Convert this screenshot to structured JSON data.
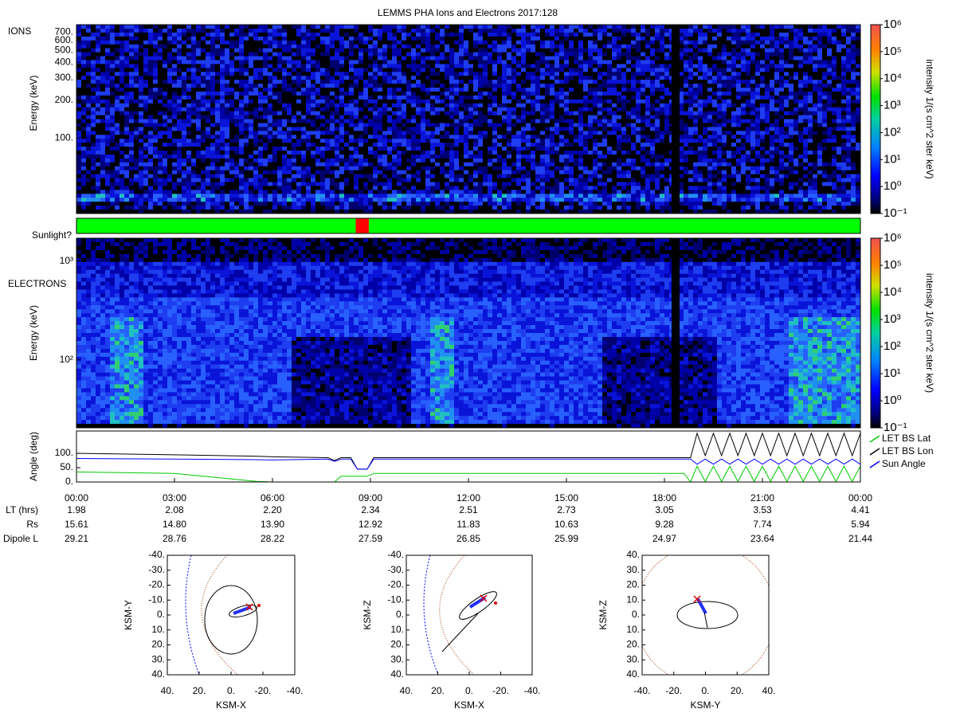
{
  "title": "LEMMS PHA Ions and Electrons  2017:128",
  "chart_data": [
    {
      "type": "heatmap",
      "label": "IONS",
      "y_label": "Energy (keV)",
      "log_y": true,
      "ylim": [
        25,
        800
      ],
      "yticks": [
        {
          "value": 100,
          "label": "100."
        },
        {
          "value": 200,
          "label": "200."
        },
        {
          "value": 300,
          "label": "300."
        },
        {
          "value": 400,
          "label": "400."
        },
        {
          "value": 500,
          "label": "500."
        },
        {
          "value": 600,
          "label": "600."
        },
        {
          "value": 700,
          "label": "700."
        }
      ],
      "colorbar": {
        "label": "intensity 1/(s cm^2 ster keV)",
        "log": true,
        "lim": [
          0.1,
          1000000
        ],
        "ticks": [
          {
            "value": 0.1,
            "label": "10⁻¹"
          },
          {
            "value": 1,
            "label": "10⁰"
          },
          {
            "value": 10,
            "label": "10¹"
          },
          {
            "value": 100,
            "label": "10²"
          },
          {
            "value": 1000,
            "label": "10³"
          },
          {
            "value": 10000,
            "label": "10⁴"
          },
          {
            "value": 100000,
            "label": "10⁵"
          },
          {
            "value": 1000000,
            "label": "10⁶"
          }
        ]
      }
    },
    {
      "type": "timeline",
      "label": "Sunlight?",
      "xlim": [
        0,
        24
      ],
      "segments": [
        {
          "start": 0,
          "end": 8.55,
          "color": "#00ff00"
        },
        {
          "start": 8.55,
          "end": 8.95,
          "color": "#ff0000"
        },
        {
          "start": 8.95,
          "end": 24,
          "color": "#00ff00"
        }
      ]
    },
    {
      "type": "heatmap",
      "label": "ELECTRONS",
      "y_label": "Energy (keV)",
      "log_y": true,
      "ylim": [
        20.6,
        1700
      ],
      "yticks": [
        {
          "value": 100,
          "label": "10²"
        },
        {
          "value": 1000,
          "label": "10³"
        }
      ],
      "colorbar": {
        "label": "intensity 1/(s cm^2 ster keV)",
        "log": true,
        "lim": [
          0.1,
          1000000
        ],
        "ticks": [
          {
            "value": 0.1,
            "label": "10⁻¹"
          },
          {
            "value": 1,
            "label": "10⁰"
          },
          {
            "value": 10,
            "label": "10¹"
          },
          {
            "value": 100,
            "label": "10²"
          },
          {
            "value": 1000,
            "label": "10³"
          },
          {
            "value": 10000,
            "label": "10⁴"
          },
          {
            "value": 100000,
            "label": "10⁵"
          },
          {
            "value": 1000000,
            "label": "10⁶"
          }
        ]
      }
    },
    {
      "type": "line",
      "y_label": "Angle (deg)",
      "xlim": [
        0,
        24
      ],
      "ylim": [
        0,
        178
      ],
      "legend": "right",
      "yticks": [
        {
          "value": 0,
          "label": "0."
        },
        {
          "value": 50,
          "label": "50."
        },
        {
          "value": 100,
          "label": "100."
        }
      ],
      "xticks": [
        {
          "value": 0,
          "label": "00:00"
        },
        {
          "value": 3,
          "label": "03:00"
        },
        {
          "value": 6,
          "label": "06:00"
        },
        {
          "value": 9,
          "label": "09:00"
        },
        {
          "value": 12,
          "label": "12:00"
        },
        {
          "value": 15,
          "label": "15:00"
        },
        {
          "value": 18,
          "label": "18:00"
        },
        {
          "value": 21,
          "label": "21:00"
        },
        {
          "value": 24,
          "label": "00:00"
        }
      ],
      "x": [
        0,
        3,
        5.5,
        6,
        7.7,
        7.9,
        8.1,
        8.4,
        8.6,
        8.9,
        9.1,
        18.6,
        18.8,
        19,
        19.25,
        19.5,
        19.75,
        20,
        20.25,
        20.5,
        20.75,
        21,
        21.25,
        21.5,
        21.75,
        22,
        22.25,
        22.5,
        22.75,
        23,
        23.25,
        23.5,
        23.75,
        24
      ],
      "series": [
        {
          "name": "LET BS Lat",
          "color": "#00cc00",
          "values": [
            35,
            30,
            2,
            0,
            0,
            0,
            20,
            20,
            20,
            20,
            30,
            30,
            0,
            55,
            2,
            55,
            2,
            55,
            2,
            55,
            2,
            55,
            2,
            55,
            2,
            55,
            2,
            55,
            2,
            55,
            2,
            55,
            2,
            55
          ]
        },
        {
          "name": "LET BS Lon",
          "color": "#000000",
          "values": [
            100,
            95,
            90,
            88,
            85,
            75,
            85,
            85,
            45,
            45,
            85,
            85,
            85,
            170,
            92,
            170,
            92,
            170,
            92,
            170,
            92,
            170,
            92,
            170,
            92,
            170,
            92,
            170,
            92,
            170,
            92,
            170,
            92,
            170
          ]
        },
        {
          "name": "Sun Angle",
          "color": "#0000ff",
          "values": [
            82,
            80,
            78,
            77,
            80,
            72,
            80,
            80,
            45,
            45,
            80,
            80,
            80,
            62,
            80,
            62,
            80,
            62,
            80,
            62,
            80,
            62,
            80,
            62,
            80,
            62,
            80,
            62,
            80,
            62,
            80,
            62,
            80,
            62
          ]
        }
      ]
    }
  ],
  "ephemeris": {
    "rows": [
      {
        "label": "LT (hrs)",
        "values": [
          "1.98",
          "2.08",
          "2.20",
          "2.34",
          "2.51",
          "2.73",
          "3.05",
          "3.53",
          "4.41"
        ]
      },
      {
        "label": "Rs",
        "values": [
          "15.61",
          "14.80",
          "13.90",
          "12.92",
          "11.83",
          "10.63",
          "9.28",
          "7.74",
          "5.94"
        ]
      },
      {
        "label": "Dipole L",
        "values": [
          "29.21",
          "28.76",
          "28.22",
          "27.59",
          "26.85",
          "25.99",
          "24.97",
          "23.64",
          "21.44"
        ]
      }
    ]
  },
  "orbits": [
    {
      "x_label": "KSM-X",
      "y_label": "KSM-Y",
      "xlim": [
        40,
        -40
      ],
      "ylim": [
        40,
        -40
      ],
      "xticks": [
        {
          "value": 40,
          "label": "40."
        },
        {
          "value": 20,
          "label": "20."
        },
        {
          "value": 0,
          "label": "0."
        },
        {
          "value": -20,
          "label": "-20."
        },
        {
          "value": -40,
          "label": "-40."
        }
      ],
      "yticks": [
        {
          "value": -40,
          "label": "-40."
        },
        {
          "value": -30,
          "label": "-30."
        },
        {
          "value": -20,
          "label": "-20."
        },
        {
          "value": -10,
          "label": "-10."
        },
        {
          "value": 0,
          "label": "0."
        },
        {
          "value": 10,
          "label": "10."
        },
        {
          "value": 20,
          "label": "20."
        },
        {
          "value": 30,
          "label": "30."
        },
        {
          "value": 40,
          "label": "40."
        }
      ]
    },
    {
      "x_label": "KSM-X",
      "y_label": "KSM-Z",
      "xlim": [
        40,
        -40
      ],
      "ylim": [
        40,
        -40
      ],
      "xticks": [
        {
          "value": 40,
          "label": "40."
        },
        {
          "value": 20,
          "label": "20."
        },
        {
          "value": 0,
          "label": "0."
        },
        {
          "value": -20,
          "label": "-20."
        },
        {
          "value": -40,
          "label": "-40."
        }
      ],
      "yticks": [
        {
          "value": -40,
          "label": "-40."
        },
        {
          "value": -30,
          "label": "-30."
        },
        {
          "value": -20,
          "label": "-20."
        },
        {
          "value": -10,
          "label": "-10."
        },
        {
          "value": 0,
          "label": "0."
        },
        {
          "value": 10,
          "label": "10."
        },
        {
          "value": 20,
          "label": "20."
        },
        {
          "value": 30,
          "label": "30."
        },
        {
          "value": 40,
          "label": "40."
        }
      ]
    },
    {
      "x_label": "KSM-Y",
      "y_label": "KSM-Z",
      "xlim": [
        -40,
        40
      ],
      "ylim": [
        -40,
        40
      ],
      "xticks": [
        {
          "value": -40,
          "label": "-40."
        },
        {
          "value": -20,
          "label": "-20."
        },
        {
          "value": 0,
          "label": "0."
        },
        {
          "value": 20,
          "label": "20."
        },
        {
          "value": 40,
          "label": "40."
        }
      ],
      "yticks": [
        {
          "value": 40,
          "label": "40."
        },
        {
          "value": 30,
          "label": "30."
        },
        {
          "value": 20,
          "label": "20."
        },
        {
          "value": 10,
          "label": "10."
        },
        {
          "value": 0,
          "label": "0."
        },
        {
          "value": -10,
          "label": "10."
        },
        {
          "value": -20,
          "label": "20."
        },
        {
          "value": -30,
          "label": "30."
        },
        {
          "value": -40,
          "label": "40."
        }
      ]
    }
  ]
}
